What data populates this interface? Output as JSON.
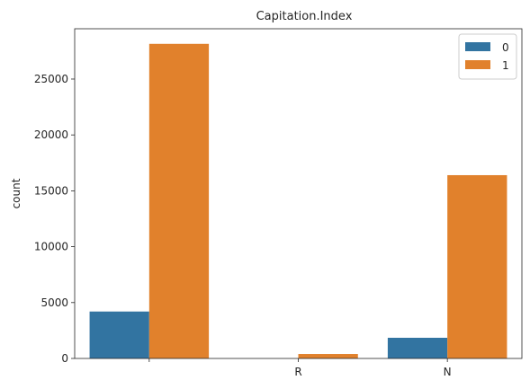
{
  "chart_data": {
    "type": "bar",
    "title": "Capitation.Index",
    "xlabel": "",
    "ylabel": "count",
    "categories": [
      "",
      "R",
      "N"
    ],
    "series": [
      {
        "name": "0",
        "color": "#3274a1",
        "values": [
          4200,
          0,
          1850
        ]
      },
      {
        "name": "1",
        "color": "#e1812c",
        "values": [
          28150,
          400,
          16400
        ]
      }
    ],
    "ylim": [
      0,
      29500
    ],
    "yticks": [
      0,
      5000,
      10000,
      15000,
      20000,
      25000
    ],
    "legend": {
      "placement": "top-right",
      "entries": [
        "0",
        "1"
      ]
    },
    "grid": false
  }
}
